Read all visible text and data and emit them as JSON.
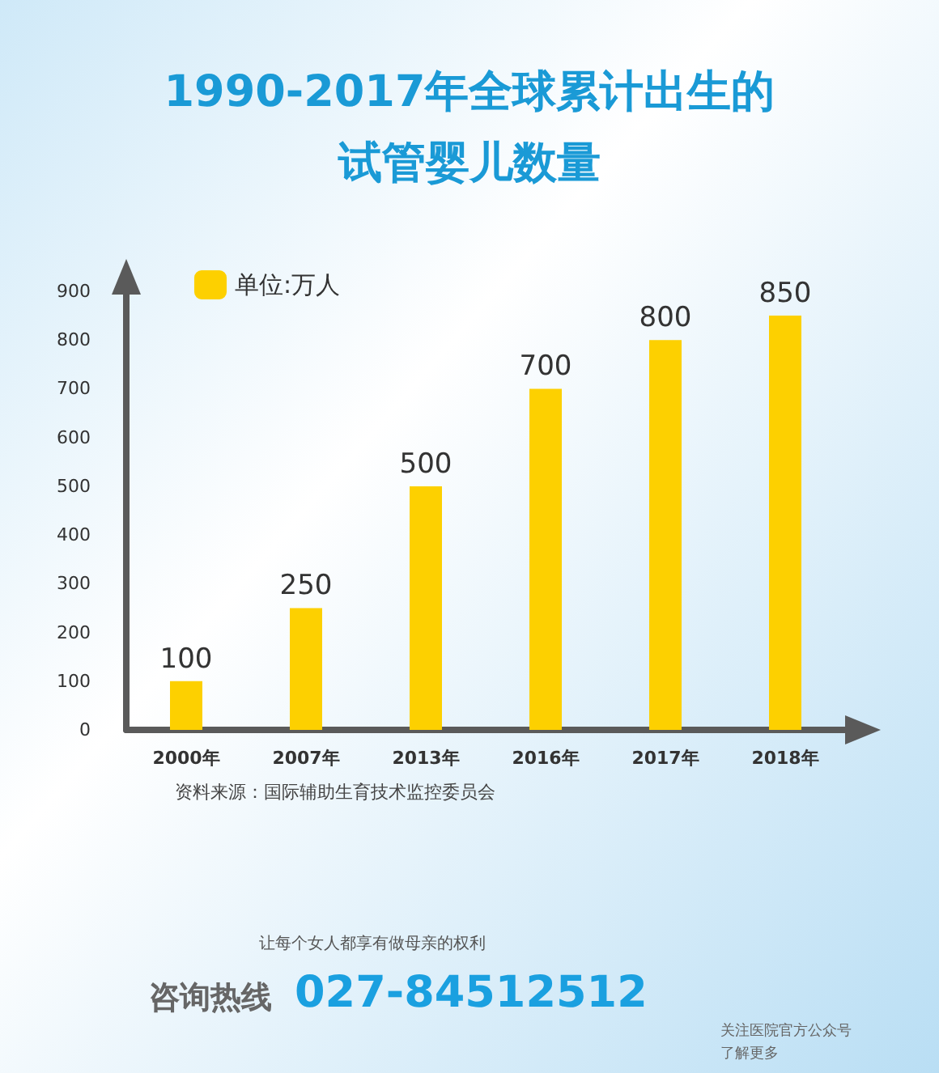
{
  "chart_data": {
    "type": "bar",
    "title": "1990-2017年全球累计出生的试管婴儿数量",
    "categories": [
      "2000年",
      "2007年",
      "2013年",
      "2016年",
      "2017年",
      "2018年"
    ],
    "series": [
      {
        "name": "单位:万人",
        "color": "#fdd000",
        "values": [
          100,
          250,
          500,
          700,
          800,
          850
        ]
      }
    ],
    "ylim": [
      0,
      900
    ],
    "yticks": [
      0,
      100,
      200,
      300,
      400,
      500,
      600,
      700,
      800,
      900
    ],
    "grid": false,
    "legend": "top left",
    "data_labels": true,
    "annotations": [
      "资料来源：国际辅助生育技术监控委员会",
      "让每个女人都享有做母亲的权利",
      "咨询热线",
      "027-84512512",
      "关注医院官方公众号",
      "了解更多"
    ]
  }
}
